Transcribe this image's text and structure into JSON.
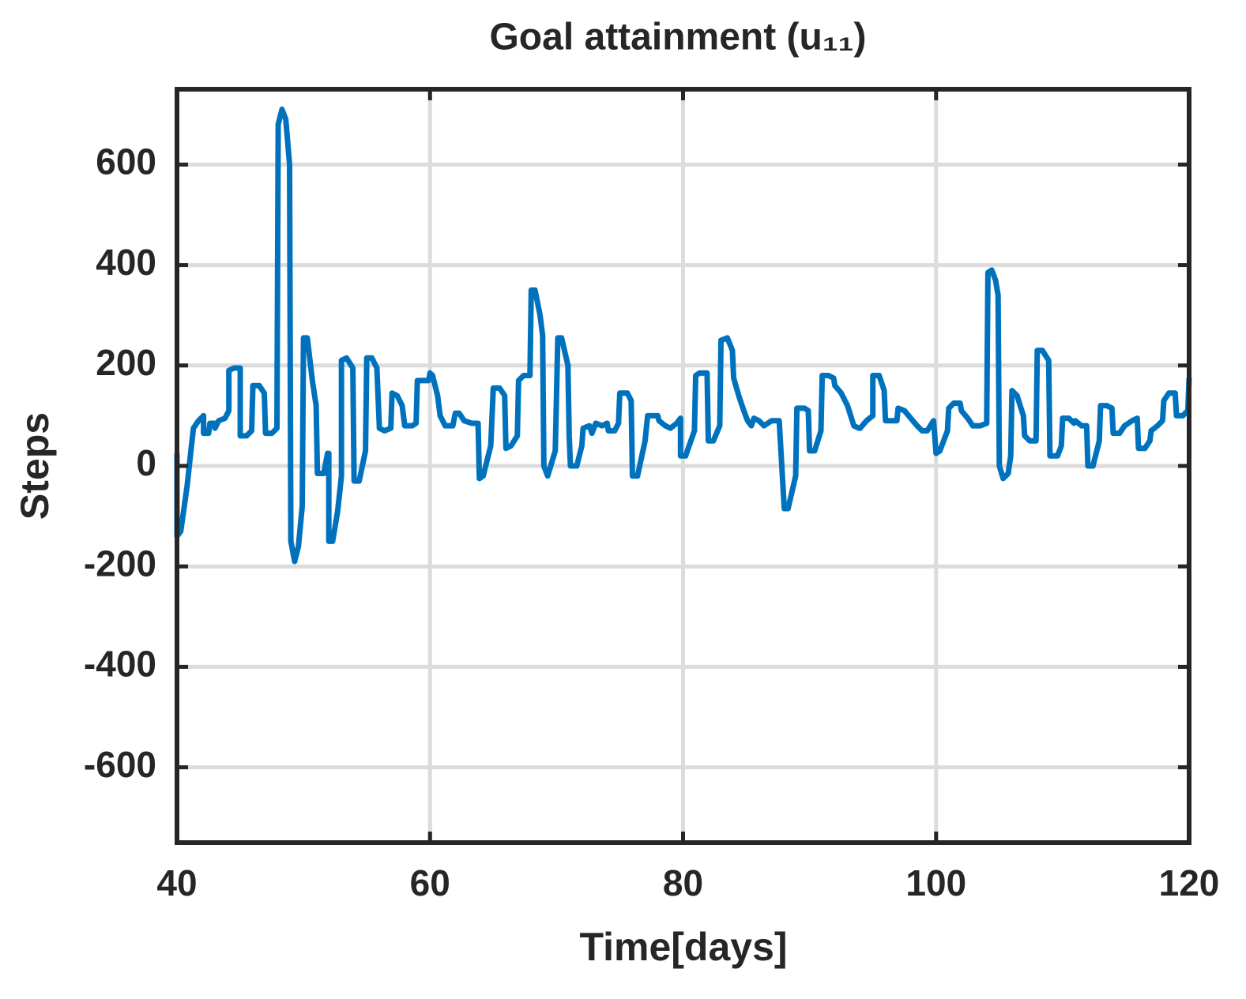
{
  "chart_data": {
    "type": "line",
    "title": "Goal attainment (u₁₁)",
    "xlabel": "Time[days]",
    "ylabel": "Steps",
    "color": "#0072bd",
    "grid": true,
    "xlim": [
      40,
      120
    ],
    "xticks": [
      40,
      60,
      80,
      100,
      120
    ],
    "ylim": [
      -750,
      750
    ],
    "yticks": [
      -600,
      -400,
      -200,
      0,
      200,
      400,
      600
    ],
    "x": [
      40,
      40,
      40.3,
      40.8,
      41.1,
      41.3,
      41.7,
      42.1,
      42.1,
      42.5,
      42.6,
      43,
      43,
      43.3,
      43.8,
      44.1,
      44.1,
      44.5,
      45,
      45,
      45.5,
      45.9,
      46,
      46.5,
      46.9,
      47,
      47.5,
      47.9,
      48,
      48.3,
      48.6,
      48.9,
      49,
      49.3,
      49.6,
      49.9,
      50,
      50.3,
      50.7,
      51,
      51.1,
      51.6,
      51.9,
      52,
      52,
      52.3,
      52.7,
      53,
      53,
      53.4,
      53.9,
      54,
      54.4,
      54.9,
      55,
      55.4,
      55.8,
      56,
      56.4,
      56.9,
      57,
      57.4,
      57.8,
      58,
      58.6,
      58.9,
      59,
      59.5,
      59.9,
      60,
      60.2,
      60.6,
      60.8,
      61.2,
      61.8,
      62,
      62.3,
      62.7,
      63.3,
      63.8,
      63.9,
      64.2,
      64.8,
      65,
      65.5,
      65.9,
      66,
      66.4,
      66.9,
      67,
      67.4,
      67.9,
      68,
      68.3,
      68.7,
      68.9,
      69,
      69.3,
      69.9,
      70.1,
      70.4,
      70.9,
      71,
      71.1,
      71.6,
      72,
      72.1,
      72.6,
      72.8,
      73.1,
      73.6,
      74,
      74.1,
      74.6,
      74.9,
      75,
      75.6,
      75.9,
      76,
      76.4,
      77,
      77.2,
      77.6,
      78,
      78.1,
      78.6,
      79,
      79.5,
      79.8,
      79.8,
      80.2,
      80.9,
      81,
      81.3,
      81.9,
      82,
      82.4,
      82.9,
      83,
      83.5,
      83.9,
      84,
      84.4,
      84.8,
      85.1,
      85.4,
      85.6,
      86,
      86.4,
      86.7,
      87,
      87.6,
      88,
      88.3,
      88.9,
      89,
      89.6,
      89.9,
      90,
      90.4,
      90.9,
      91,
      91.5,
      91.9,
      92,
      92.5,
      93,
      93.5,
      93.9,
      94,
      94.5,
      95,
      95,
      95.5,
      95.9,
      96,
      96.5,
      96.9,
      97,
      97.5,
      98,
      98.5,
      98.9,
      99.3,
      99.8,
      100,
      100.3,
      100.9,
      101,
      101.4,
      101.9,
      102,
      102.5,
      102.9,
      103.5,
      104,
      104.1,
      104.4,
      104.7,
      104.9,
      105,
      105.3,
      105.7,
      105.9,
      106,
      106.4,
      106.9,
      107,
      107.4,
      107.9,
      108,
      108.4,
      108.9,
      109,
      109.6,
      109.9,
      110,
      110.5,
      110.9,
      111,
      111.5,
      111.9,
      112,
      112.4,
      112.9,
      113,
      113.5,
      113.9,
      114,
      114.5,
      114.9,
      115.5,
      115.9,
      116,
      116.5,
      116.9,
      117,
      117.5,
      117.9,
      118,
      118.4,
      118.9,
      119,
      119.5,
      119.9,
      120
    ],
    "values": [
      25,
      -140,
      -130,
      -40,
      30,
      75,
      90,
      100,
      65,
      65,
      85,
      85,
      75,
      90,
      95,
      110,
      190,
      195,
      195,
      60,
      60,
      70,
      160,
      160,
      145,
      65,
      65,
      75,
      680,
      710,
      690,
      600,
      -150,
      -190,
      -160,
      -80,
      255,
      255,
      170,
      120,
      -15,
      -15,
      25,
      25,
      -150,
      -150,
      -90,
      -20,
      210,
      215,
      195,
      -30,
      -30,
      30,
      215,
      215,
      195,
      75,
      70,
      75,
      145,
      140,
      120,
      80,
      80,
      85,
      170,
      170,
      170,
      185,
      180,
      140,
      100,
      80,
      80,
      105,
      105,
      90,
      85,
      85,
      -25,
      -20,
      40,
      155,
      155,
      140,
      35,
      40,
      60,
      170,
      180,
      180,
      350,
      350,
      300,
      260,
      0,
      -20,
      30,
      255,
      255,
      200,
      60,
      0,
      0,
      40,
      75,
      80,
      65,
      85,
      80,
      85,
      70,
      70,
      85,
      145,
      145,
      130,
      -20,
      -20,
      50,
      100,
      100,
      100,
      90,
      80,
      75,
      85,
      95,
      20,
      20,
      70,
      180,
      185,
      185,
      50,
      50,
      80,
      250,
      255,
      230,
      175,
      140,
      110,
      90,
      80,
      95,
      90,
      80,
      85,
      90,
      90,
      -85,
      -85,
      -20,
      115,
      115,
      110,
      30,
      30,
      70,
      180,
      180,
      175,
      160,
      145,
      120,
      80,
      75,
      75,
      90,
      100,
      180,
      180,
      150,
      90,
      90,
      90,
      115,
      110,
      95,
      80,
      70,
      70,
      90,
      25,
      30,
      70,
      115,
      125,
      125,
      110,
      95,
      80,
      80,
      85,
      385,
      390,
      370,
      340,
      0,
      -25,
      -15,
      20,
      150,
      140,
      100,
      60,
      50,
      50,
      230,
      230,
      210,
      20,
      20,
      40,
      95,
      95,
      85,
      90,
      80,
      80,
      0,
      0,
      50,
      120,
      120,
      115,
      65,
      65,
      80,
      90,
      95,
      35,
      35,
      50,
      70,
      80,
      90,
      130,
      145,
      145,
      100,
      100,
      110,
      175
    ]
  }
}
